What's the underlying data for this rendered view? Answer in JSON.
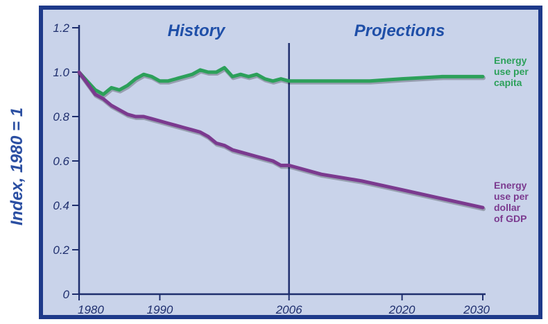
{
  "chart_data": {
    "type": "line",
    "ylabel": "Index, 1980 = 1",
    "xlabel": "",
    "title": "",
    "xlim": [
      1980,
      2030
    ],
    "ylim": [
      0,
      1.2
    ],
    "x_ticks": [
      "1980",
      "1990",
      "2006",
      "2020",
      "2030"
    ],
    "y_ticks": [
      "0",
      "0.2",
      "0.4",
      "0.6",
      "0.8",
      "1.0",
      "1.2"
    ],
    "divider_year": 2006,
    "sections": [
      "History",
      "Projections"
    ],
    "grid": false,
    "series": [
      {
        "name": "Energy use per capita",
        "label_lines": [
          "Energy",
          "use per",
          "capita"
        ],
        "color": "#2ca05a",
        "points": [
          [
            1980,
            1.0
          ],
          [
            1981,
            0.96
          ],
          [
            1982,
            0.92
          ],
          [
            1983,
            0.9
          ],
          [
            1984,
            0.93
          ],
          [
            1985,
            0.92
          ],
          [
            1986,
            0.94
          ],
          [
            1987,
            0.97
          ],
          [
            1988,
            0.99
          ],
          [
            1989,
            0.98
          ],
          [
            1990,
            0.96
          ],
          [
            1991,
            0.96
          ],
          [
            1992,
            0.97
          ],
          [
            1993,
            0.98
          ],
          [
            1994,
            0.99
          ],
          [
            1995,
            1.01
          ],
          [
            1996,
            1.0
          ],
          [
            1997,
            1.0
          ],
          [
            1998,
            1.02
          ],
          [
            1999,
            0.98
          ],
          [
            2000,
            0.99
          ],
          [
            2001,
            0.98
          ],
          [
            2002,
            0.99
          ],
          [
            2003,
            0.97
          ],
          [
            2004,
            0.96
          ],
          [
            2005,
            0.97
          ],
          [
            2006,
            0.96
          ],
          [
            2008,
            0.96
          ],
          [
            2012,
            0.96
          ],
          [
            2016,
            0.96
          ],
          [
            2020,
            0.97
          ],
          [
            2025,
            0.98
          ],
          [
            2030,
            0.98
          ]
        ]
      },
      {
        "name": "Energy use per dollar of GDP",
        "label_lines": [
          "Energy",
          "use per",
          "dollar",
          "of GDP"
        ],
        "color": "#7b3a8f",
        "points": [
          [
            1980,
            1.0
          ],
          [
            1981,
            0.95
          ],
          [
            1982,
            0.9
          ],
          [
            1983,
            0.88
          ],
          [
            1984,
            0.85
          ],
          [
            1985,
            0.83
          ],
          [
            1986,
            0.81
          ],
          [
            1987,
            0.8
          ],
          [
            1988,
            0.8
          ],
          [
            1989,
            0.79
          ],
          [
            1990,
            0.78
          ],
          [
            1991,
            0.77
          ],
          [
            1992,
            0.76
          ],
          [
            1993,
            0.75
          ],
          [
            1994,
            0.74
          ],
          [
            1995,
            0.73
          ],
          [
            1996,
            0.71
          ],
          [
            1997,
            0.68
          ],
          [
            1998,
            0.67
          ],
          [
            1999,
            0.65
          ],
          [
            2000,
            0.64
          ],
          [
            2001,
            0.63
          ],
          [
            2002,
            0.62
          ],
          [
            2003,
            0.61
          ],
          [
            2004,
            0.6
          ],
          [
            2005,
            0.58
          ],
          [
            2006,
            0.58
          ],
          [
            2010,
            0.54
          ],
          [
            2015,
            0.51
          ],
          [
            2020,
            0.47
          ],
          [
            2025,
            0.43
          ],
          [
            2030,
            0.39
          ]
        ]
      }
    ]
  },
  "colors": {
    "frame": "#1e3a8a",
    "plot_bg": "#c9d3ea",
    "axis": "#1f2f6e"
  }
}
